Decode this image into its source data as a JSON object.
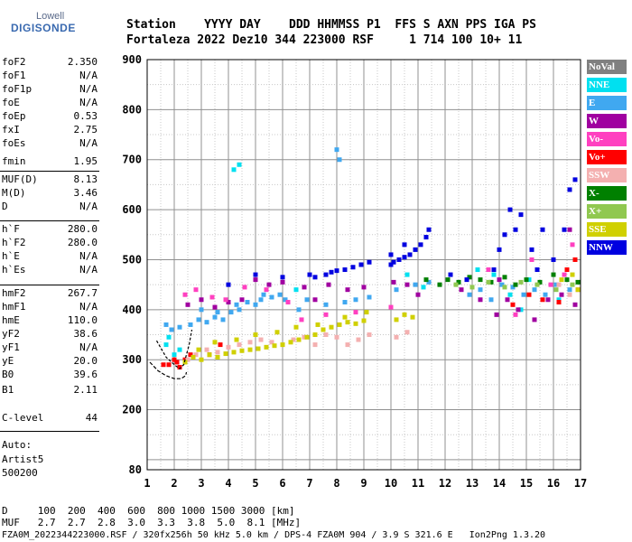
{
  "logo": {
    "line1": "Lowell",
    "line2": "DIGISONDE"
  },
  "header": {
    "labels": "Station    YYYY DAY    DDD HHMMSS P1  FFS S AXN PPS IGA PS",
    "values": "Fortaleza 2022 Dez10 344 223000 RSF     1 714 100 10+ 11"
  },
  "params": [
    {
      "k": "foF2",
      "v": "2.350"
    },
    {
      "k": "foF1",
      "v": "N/A"
    },
    {
      "k": "foF1p",
      "v": "N/A"
    },
    {
      "k": "foE",
      "v": "N/A"
    },
    {
      "k": "foEp",
      "v": "0.53"
    },
    {
      "k": "fxI",
      "v": "2.75"
    },
    {
      "k": "foEs",
      "v": "N/A"
    },
    {
      "k": "fmin",
      "v": "1.95"
    },
    {
      "k": "MUF(D)",
      "v": "8.13"
    },
    {
      "k": "M(D)",
      "v": "3.46"
    },
    {
      "k": "D",
      "v": "N/A"
    },
    {
      "k": "h`F",
      "v": "280.0"
    },
    {
      "k": "h`F2",
      "v": "280.0"
    },
    {
      "k": "h`E",
      "v": "N/A"
    },
    {
      "k": "h`Es",
      "v": "N/A"
    },
    {
      "k": "hmF2",
      "v": "267.7"
    },
    {
      "k": "hmF1",
      "v": "N/A"
    },
    {
      "k": "hmE",
      "v": "110.0"
    },
    {
      "k": "yF2",
      "v": "38.6"
    },
    {
      "k": "yF1",
      "v": "N/A"
    },
    {
      "k": "yE",
      "v": "20.0"
    },
    {
      "k": "B0",
      "v": "39.6"
    },
    {
      "k": "B1",
      "v": "2.11"
    },
    {
      "k": "C-level",
      "v": "44"
    }
  ],
  "auto": {
    "line1": "Auto:",
    "line2": "Artist5",
    "line3": "500200"
  },
  "footer": {
    "d_row": "D     100  200  400  600  800 1000 1500 3000 [km]",
    "muf_row": "MUF   2.7  2.7  2.8  3.0  3.3  3.8  5.0  8.1 [MHz]",
    "file_row": "FZA0M_2022344223000.RSF / 320fx256h 50 kHz 5.0 km / DPS-4 FZA0M 904 / 3.9 S 321.6 E   Ion2Png 1.3.20"
  },
  "legend": [
    {
      "label": "NoVal",
      "color": "#808080"
    },
    {
      "label": "NNE",
      "color": "#00e0f0"
    },
    {
      "label": "E",
      "color": "#40a8f0"
    },
    {
      "label": "W",
      "color": "#a000a0"
    },
    {
      "label": "Vo-",
      "color": "#ff40c0"
    },
    {
      "label": "Vo+",
      "color": "#ff0000"
    },
    {
      "label": "SSW",
      "color": "#f4b0b0"
    },
    {
      "label": "X-",
      "color": "#008000"
    },
    {
      "label": "X+",
      "color": "#90c850"
    },
    {
      "label": "SSE",
      "color": "#d0d000"
    },
    {
      "label": "NNW",
      "color": "#0000e0"
    }
  ],
  "chart_data": {
    "type": "scatter",
    "title": "",
    "xlabel": "",
    "ylabel": "",
    "xlim": [
      1,
      17
    ],
    "ylim": [
      80,
      900
    ],
    "x_ticks": [
      1,
      2,
      3,
      4,
      5,
      6,
      7,
      8,
      9,
      10,
      11,
      12,
      13,
      14,
      15,
      16,
      17
    ],
    "y_ticks": [
      80,
      200,
      300,
      400,
      500,
      600,
      700,
      800,
      900
    ],
    "grid": true,
    "legend_position": "right",
    "series": [
      {
        "name": "NNE",
        "points": [
          [
            1.7,
            330
          ],
          [
            1.8,
            345
          ],
          [
            2.0,
            310
          ],
          [
            2.2,
            320
          ],
          [
            4.2,
            680
          ],
          [
            4.4,
            690
          ],
          [
            6.5,
            440
          ],
          [
            10.6,
            470
          ],
          [
            11.2,
            445
          ],
          [
            13.2,
            480
          ],
          [
            14.4,
            430
          ],
          [
            15.1,
            460
          ],
          [
            16.2,
            420
          ],
          [
            14.8,
            400
          ],
          [
            13.8,
            470
          ]
        ]
      },
      {
        "name": "E",
        "points": [
          [
            1.7,
            370
          ],
          [
            1.9,
            360
          ],
          [
            2.2,
            365
          ],
          [
            2.6,
            370
          ],
          [
            2.9,
            380
          ],
          [
            3.2,
            375
          ],
          [
            3.5,
            385
          ],
          [
            3.8,
            380
          ],
          [
            4.1,
            395
          ],
          [
            4.4,
            400
          ],
          [
            4.7,
            415
          ],
          [
            5.0,
            410
          ],
          [
            5.3,
            430
          ],
          [
            5.6,
            425
          ],
          [
            5.9,
            430
          ],
          [
            6.1,
            420
          ],
          [
            6.6,
            400
          ],
          [
            6.9,
            420
          ],
          [
            7.6,
            410
          ],
          [
            8.0,
            720
          ],
          [
            8.1,
            700
          ],
          [
            8.3,
            415
          ],
          [
            8.7,
            420
          ],
          [
            9.2,
            425
          ],
          [
            10.2,
            440
          ],
          [
            10.9,
            450
          ],
          [
            11.4,
            455
          ],
          [
            12.9,
            430
          ],
          [
            13.3,
            440
          ],
          [
            13.7,
            420
          ],
          [
            14.1,
            450
          ],
          [
            14.5,
            445
          ],
          [
            14.9,
            430
          ],
          [
            15.3,
            440
          ],
          [
            15.7,
            430
          ],
          [
            16.1,
            450
          ],
          [
            16.6,
            440
          ],
          [
            3.0,
            400
          ],
          [
            3.6,
            395
          ],
          [
            4.3,
            410
          ],
          [
            5.2,
            420
          ]
        ]
      },
      {
        "name": "W",
        "points": [
          [
            2.5,
            410
          ],
          [
            3.0,
            420
          ],
          [
            3.5,
            405
          ],
          [
            4.0,
            415
          ],
          [
            4.5,
            420
          ],
          [
            5.0,
            460
          ],
          [
            5.5,
            450
          ],
          [
            6.0,
            455
          ],
          [
            6.8,
            445
          ],
          [
            7.2,
            420
          ],
          [
            7.7,
            450
          ],
          [
            8.4,
            440
          ],
          [
            9.0,
            445
          ],
          [
            10.1,
            455
          ],
          [
            10.6,
            450
          ],
          [
            11.0,
            430
          ],
          [
            12.6,
            440
          ],
          [
            13.3,
            420
          ],
          [
            13.9,
            390
          ],
          [
            14.3,
            420
          ],
          [
            14.7,
            400
          ],
          [
            15.3,
            380
          ],
          [
            15.8,
            420
          ],
          [
            16.3,
            430
          ],
          [
            16.8,
            410
          ],
          [
            16.6,
            560
          ],
          [
            14.0,
            460
          ]
        ]
      },
      {
        "name": "Vo-",
        "points": [
          [
            2.4,
            430
          ],
          [
            2.8,
            440
          ],
          [
            3.4,
            425
          ],
          [
            3.9,
            420
          ],
          [
            4.6,
            445
          ],
          [
            5.4,
            440
          ],
          [
            6.2,
            415
          ],
          [
            6.7,
            380
          ],
          [
            7.6,
            390
          ],
          [
            8.7,
            395
          ],
          [
            10.0,
            405
          ],
          [
            14.6,
            390
          ],
          [
            15.2,
            500
          ],
          [
            15.9,
            450
          ],
          [
            16.4,
            470
          ],
          [
            16.9,
            440
          ],
          [
            13.6,
            480
          ],
          [
            16.7,
            530
          ]
        ]
      },
      {
        "name": "Vo+",
        "points": [
          [
            1.6,
            290
          ],
          [
            1.8,
            290
          ],
          [
            2.1,
            295
          ],
          [
            2.2,
            285
          ],
          [
            2.0,
            300
          ],
          [
            2.4,
            300
          ],
          [
            2.6,
            310
          ],
          [
            3.3,
            310
          ],
          [
            3.7,
            330
          ],
          [
            14.5,
            410
          ],
          [
            15.1,
            430
          ],
          [
            15.6,
            420
          ],
          [
            16.2,
            415
          ],
          [
            16.8,
            500
          ],
          [
            16.5,
            480
          ]
        ]
      },
      {
        "name": "SSW",
        "points": [
          [
            2.5,
            300
          ],
          [
            2.8,
            310
          ],
          [
            3.2,
            320
          ],
          [
            3.6,
            315
          ],
          [
            4.0,
            325
          ],
          [
            4.4,
            330
          ],
          [
            4.8,
            335
          ],
          [
            5.2,
            340
          ],
          [
            5.6,
            335
          ],
          [
            6.0,
            330
          ],
          [
            6.4,
            340
          ],
          [
            6.8,
            345
          ],
          [
            7.2,
            330
          ],
          [
            7.6,
            350
          ],
          [
            8.0,
            345
          ],
          [
            8.4,
            330
          ],
          [
            8.8,
            340
          ],
          [
            9.2,
            350
          ],
          [
            10.2,
            345
          ],
          [
            10.6,
            355
          ],
          [
            16.2,
            450
          ],
          [
            16.6,
            430
          ]
        ]
      },
      {
        "name": "X-",
        "points": [
          [
            12.1,
            460
          ],
          [
            12.5,
            455
          ],
          [
            12.9,
            465
          ],
          [
            13.3,
            460
          ],
          [
            13.7,
            455
          ],
          [
            14.2,
            465
          ],
          [
            14.6,
            450
          ],
          [
            15.0,
            460
          ],
          [
            15.5,
            455
          ],
          [
            16.0,
            470
          ],
          [
            16.5,
            460
          ],
          [
            16.9,
            455
          ],
          [
            11.8,
            450
          ],
          [
            11.3,
            460
          ]
        ]
      },
      {
        "name": "X+",
        "points": [
          [
            12.4,
            450
          ],
          [
            13.0,
            445
          ],
          [
            13.6,
            455
          ],
          [
            14.2,
            445
          ],
          [
            14.8,
            455
          ],
          [
            15.4,
            450
          ],
          [
            16.1,
            440
          ],
          [
            16.7,
            450
          ]
        ]
      },
      {
        "name": "SSE",
        "points": [
          [
            2.4,
            295
          ],
          [
            2.7,
            305
          ],
          [
            3.0,
            300
          ],
          [
            3.3,
            310
          ],
          [
            3.6,
            305
          ],
          [
            3.9,
            312
          ],
          [
            4.2,
            315
          ],
          [
            4.5,
            318
          ],
          [
            4.8,
            320
          ],
          [
            5.1,
            322
          ],
          [
            5.4,
            325
          ],
          [
            5.7,
            328
          ],
          [
            6.0,
            330
          ],
          [
            6.3,
            335
          ],
          [
            6.6,
            340
          ],
          [
            6.9,
            345
          ],
          [
            7.2,
            350
          ],
          [
            7.5,
            360
          ],
          [
            7.8,
            365
          ],
          [
            8.1,
            370
          ],
          [
            8.4,
            375
          ],
          [
            8.7,
            372
          ],
          [
            9.0,
            378
          ],
          [
            10.2,
            380
          ],
          [
            10.5,
            390
          ],
          [
            10.8,
            385
          ],
          [
            2.9,
            320
          ],
          [
            3.5,
            335
          ],
          [
            4.3,
            340
          ],
          [
            5.0,
            350
          ],
          [
            5.8,
            355
          ],
          [
            6.5,
            365
          ],
          [
            7.3,
            370
          ],
          [
            8.3,
            385
          ],
          [
            9.1,
            395
          ],
          [
            16.3,
            460
          ],
          [
            16.7,
            470
          ],
          [
            16.9,
            440
          ]
        ]
      },
      {
        "name": "NNW",
        "points": [
          [
            4.0,
            450
          ],
          [
            5.0,
            470
          ],
          [
            6.0,
            465
          ],
          [
            7.0,
            470
          ],
          [
            7.2,
            465
          ],
          [
            7.6,
            470
          ],
          [
            7.8,
            475
          ],
          [
            8.0,
            478
          ],
          [
            8.3,
            480
          ],
          [
            8.6,
            485
          ],
          [
            8.9,
            490
          ],
          [
            9.2,
            495
          ],
          [
            10.0,
            490
          ],
          [
            10.1,
            495
          ],
          [
            10.3,
            500
          ],
          [
            10.5,
            505
          ],
          [
            10.7,
            510
          ],
          [
            10.9,
            520
          ],
          [
            11.1,
            530
          ],
          [
            11.3,
            545
          ],
          [
            11.4,
            560
          ],
          [
            10.0,
            510
          ],
          [
            10.5,
            530
          ],
          [
            14.2,
            550
          ],
          [
            14.4,
            600
          ],
          [
            14.6,
            560
          ],
          [
            14.8,
            590
          ],
          [
            15.2,
            520
          ],
          [
            15.6,
            560
          ],
          [
            16.0,
            500
          ],
          [
            16.4,
            560
          ],
          [
            16.8,
            660
          ],
          [
            16.6,
            640
          ],
          [
            13.8,
            480
          ],
          [
            12.2,
            470
          ],
          [
            12.8,
            460
          ],
          [
            14.0,
            520
          ],
          [
            15.4,
            480
          ]
        ]
      }
    ],
    "trace": {
      "name": "profile",
      "points": [
        [
          1.35,
          338
        ],
        [
          1.7,
          305
        ],
        [
          2.0,
          290
        ],
        [
          2.2,
          282
        ],
        [
          2.35,
          290
        ],
        [
          2.4,
          300
        ],
        [
          2.55,
          330
        ],
        [
          2.65,
          360
        ]
      ]
    },
    "profile": {
      "name": "E-layer profile",
      "points": [
        [
          1.1,
          295
        ],
        [
          1.4,
          278
        ],
        [
          1.7,
          268
        ],
        [
          2.0,
          262
        ],
        [
          2.25,
          262
        ],
        [
          2.42,
          268
        ],
        [
          2.45,
          275
        ]
      ]
    }
  }
}
